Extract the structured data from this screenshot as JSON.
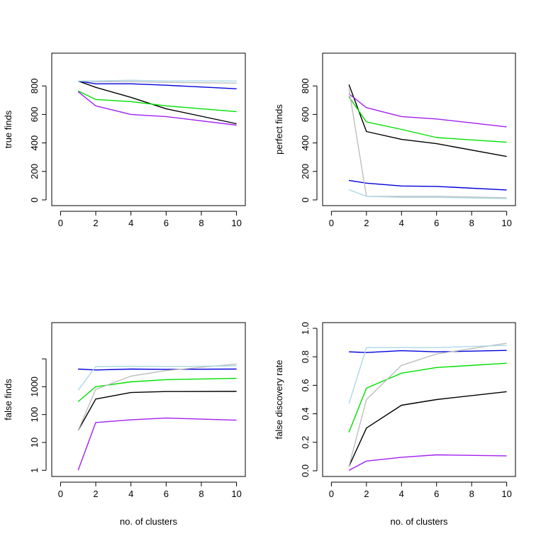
{
  "chart_data": [
    {
      "type": "line",
      "title": "",
      "xlabel": "",
      "ylabel": "true finds",
      "xlim": [
        -0.5,
        10.5
      ],
      "ylim": [
        -40,
        1030
      ],
      "xticks": [
        0,
        2,
        4,
        6,
        8,
        10
      ],
      "xtick_labels": [
        "0",
        "2",
        "4",
        "6",
        "8",
        "10"
      ],
      "yscale": "linear",
      "yticks": [
        0,
        200,
        400,
        600,
        800
      ],
      "ytick_labels": [
        "0",
        "200",
        "400",
        "600",
        "800"
      ],
      "x": [
        1,
        2,
        4,
        6,
        10
      ],
      "series": [
        {
          "color": "#000000",
          "values": [
            835,
            790,
            720,
            640,
            535
          ]
        },
        {
          "color": "#00e000",
          "values": [
            765,
            705,
            690,
            660,
            620
          ]
        },
        {
          "color": "#a020f0",
          "values": [
            760,
            660,
            600,
            585,
            525
          ]
        },
        {
          "color": "#0000dd",
          "values": [
            835,
            815,
            815,
            805,
            780
          ]
        },
        {
          "color": "#bebebe",
          "values": [
            835,
            830,
            830,
            825,
            820
          ]
        },
        {
          "color": "#add8e6",
          "values": [
            835,
            835,
            840,
            835,
            835
          ]
        }
      ]
    },
    {
      "type": "line",
      "title": "",
      "xlabel": "",
      "ylabel": "perfect finds",
      "xlim": [
        -0.5,
        10.5
      ],
      "ylim": [
        -40,
        1030
      ],
      "xticks": [
        0,
        2,
        4,
        6,
        8,
        10
      ],
      "xtick_labels": [
        "0",
        "2",
        "4",
        "6",
        "8",
        "10"
      ],
      "yscale": "linear",
      "yticks": [
        0,
        200,
        400,
        600,
        800
      ],
      "ytick_labels": [
        "0",
        "200",
        "400",
        "600",
        "800"
      ],
      "x": [
        1,
        2,
        4,
        6,
        10
      ],
      "series": [
        {
          "color": "#000000",
          "values": [
            810,
            480,
            425,
            395,
            305
          ]
        },
        {
          "color": "#00e000",
          "values": [
            725,
            548,
            495,
            438,
            405
          ]
        },
        {
          "color": "#a020f0",
          "values": [
            745,
            648,
            585,
            568,
            513
          ]
        },
        {
          "color": "#0000dd",
          "values": [
            137,
            118,
            98,
            95,
            70
          ]
        },
        {
          "color": "#bebebe",
          "values": [
            780,
            25,
            25,
            25,
            15
          ]
        },
        {
          "color": "#add8e6",
          "values": [
            72,
            25,
            18,
            18,
            10
          ]
        }
      ]
    },
    {
      "type": "line",
      "title": "",
      "xlabel": "no. of clusters",
      "ylabel": "false finds",
      "xlim": [
        -0.5,
        10.5
      ],
      "ylim": [
        0.6,
        200000
      ],
      "xticks": [
        0,
        2,
        4,
        6,
        8,
        10
      ],
      "xtick_labels": [
        "0",
        "2",
        "4",
        "6",
        "8",
        "10"
      ],
      "yscale": "log",
      "yticks": [
        1,
        10,
        100,
        1000,
        10000
      ],
      "ytick_labels": [
        "1",
        "10",
        "100",
        "1000",
        ""
      ],
      "x": [
        1,
        2,
        4,
        6,
        10
      ],
      "series": [
        {
          "color": "#000000",
          "values": [
            27,
            360,
            620,
            670,
            680
          ]
        },
        {
          "color": "#00e000",
          "values": [
            290,
            1000,
            1500,
            1800,
            2000
          ]
        },
        {
          "color": "#a020f0",
          "values": [
            1,
            52,
            65,
            75,
            63
          ]
        },
        {
          "color": "#0000dd",
          "values": [
            4300,
            4000,
            4300,
            4200,
            4300
          ]
        },
        {
          "color": "#bebebe",
          "values": [
            27,
            800,
            2400,
            3800,
            6500
          ]
        },
        {
          "color": "#add8e6",
          "values": [
            750,
            5300,
            5400,
            5300,
            5600
          ]
        }
      ]
    },
    {
      "type": "line",
      "title": "",
      "xlabel": "no. of clusters",
      "ylabel": "false discovery rate",
      "xlim": [
        -0.5,
        10.5
      ],
      "ylim": [
        -0.04,
        1.04
      ],
      "xticks": [
        0,
        2,
        4,
        6,
        8,
        10
      ],
      "xtick_labels": [
        "0",
        "2",
        "4",
        "6",
        "8",
        "10"
      ],
      "yscale": "linear",
      "yticks": [
        0,
        0.2,
        0.4,
        0.6,
        0.8,
        1.0
      ],
      "ytick_labels": [
        "0.0",
        "0.2",
        "0.4",
        "0.6",
        "0.8",
        "1.0"
      ],
      "x": [
        1,
        2,
        4,
        6,
        10
      ],
      "series": [
        {
          "color": "#000000",
          "values": [
            0.03,
            0.3,
            0.46,
            0.5,
            0.555
          ]
        },
        {
          "color": "#00e000",
          "values": [
            0.27,
            0.58,
            0.685,
            0.725,
            0.755
          ]
        },
        {
          "color": "#a020f0",
          "values": [
            0.003,
            0.068,
            0.095,
            0.112,
            0.105
          ]
        },
        {
          "color": "#0000dd",
          "values": [
            0.835,
            0.83,
            0.843,
            0.835,
            0.845
          ]
        },
        {
          "color": "#bebebe",
          "values": [
            0.03,
            0.5,
            0.74,
            0.82,
            0.895
          ]
        },
        {
          "color": "#add8e6",
          "values": [
            0.47,
            0.865,
            0.865,
            0.865,
            0.88
          ]
        }
      ]
    }
  ]
}
